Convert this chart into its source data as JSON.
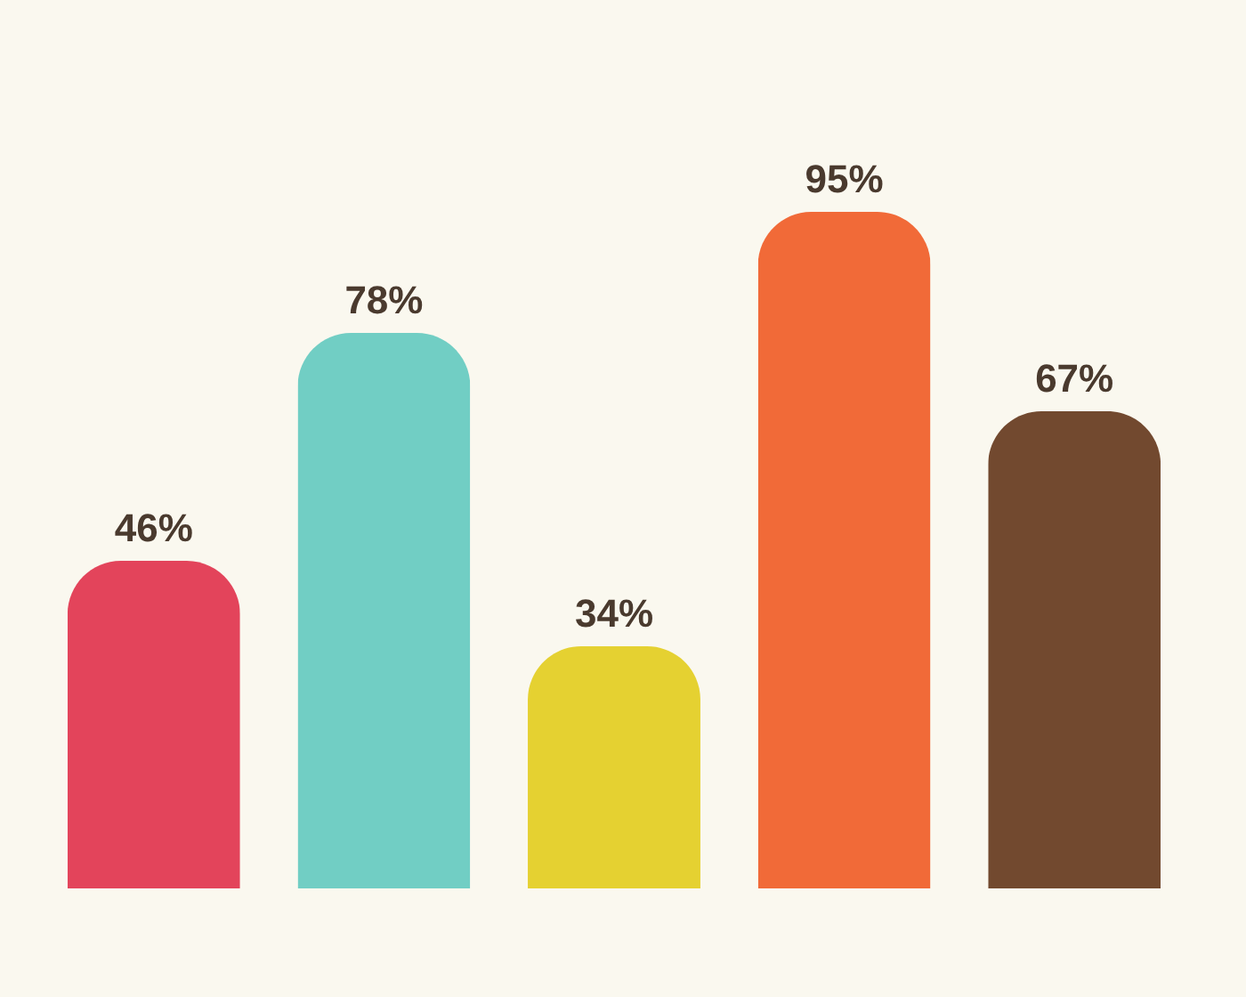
{
  "chart_data": {
    "type": "bar",
    "categories": [
      null,
      null,
      null,
      null,
      null
    ],
    "values": [
      46,
      78,
      34,
      95,
      67
    ],
    "value_labels": [
      "46%",
      "78%",
      "34%",
      "95%",
      "67%"
    ],
    "colors": [
      "#e0304a",
      "#62c9bf",
      "#e2cc1c",
      "#ef5a24",
      "#63351a"
    ],
    "tick_labels": false
  }
}
